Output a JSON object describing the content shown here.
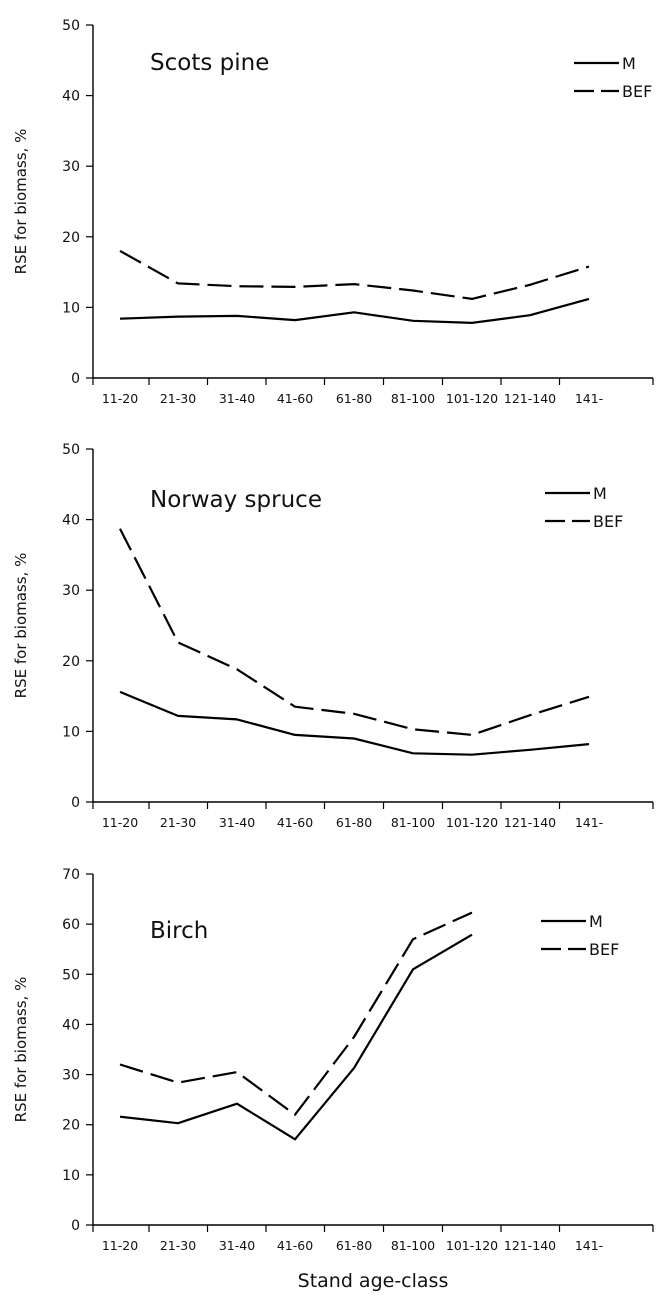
{
  "chart_data": [
    {
      "type": "line",
      "title": "Scots pine",
      "ylabel": "RSE for biomass, %",
      "xlabel": "",
      "ylim": [
        0,
        50
      ],
      "yticks": [
        0,
        10,
        20,
        30,
        40,
        50
      ],
      "categories": [
        "11-20",
        "21-30",
        "31-40",
        "41-60",
        "61-80",
        "81-100",
        "101-120",
        "121-140",
        "141-"
      ],
      "series": [
        {
          "name": "M",
          "style": "solid",
          "values": [
            8.4,
            8.7,
            8.8,
            8.2,
            9.3,
            8.1,
            7.8,
            8.9,
            11.2
          ]
        },
        {
          "name": "BEF",
          "style": "dashed",
          "values": [
            18,
            13.4,
            13.0,
            12.9,
            13.3,
            12.4,
            11.2,
            13.2,
            15.8
          ]
        }
      ],
      "legend_position": "top-right"
    },
    {
      "type": "line",
      "title": "Norway spruce",
      "ylabel": "RSE for biomass, %",
      "xlabel": "",
      "ylim": [
        0,
        50
      ],
      "yticks": [
        0,
        10,
        20,
        30,
        40,
        50
      ],
      "categories": [
        "11-20",
        "21-30",
        "31-40",
        "41-60",
        "61-80",
        "81-100",
        "101-120",
        "121-140",
        "141-"
      ],
      "series": [
        {
          "name": "M",
          "style": "solid",
          "values": [
            15.6,
            12.2,
            11.7,
            9.5,
            9.0,
            6.9,
            6.7,
            7.4,
            8.2
          ]
        },
        {
          "name": "BEF",
          "style": "dashed",
          "values": [
            38.7,
            22.6,
            18.8,
            13.5,
            12.5,
            10.3,
            9.5,
            12.3,
            14.9
          ]
        }
      ],
      "legend_position": "top-right"
    },
    {
      "type": "line",
      "title": "Birch",
      "ylabel": "RSE for biomass, %",
      "xlabel": "Stand age-class",
      "ylim": [
        0,
        70
      ],
      "yticks": [
        0,
        10,
        20,
        30,
        40,
        50,
        60,
        70
      ],
      "categories": [
        "11-20",
        "21-30",
        "31-40",
        "41-60",
        "61-80",
        "81-100",
        "101-120",
        "121-140",
        "141-"
      ],
      "series": [
        {
          "name": "M",
          "style": "solid",
          "values": [
            21.6,
            20.3,
            24.2,
            17.1,
            31.3,
            51.0,
            57.9,
            null,
            null
          ]
        },
        {
          "name": "BEF",
          "style": "dashed",
          "values": [
            32.0,
            28.4,
            30.5,
            22.0,
            37.5,
            57.0,
            62.3,
            null,
            null
          ]
        }
      ],
      "legend_position": "top-right"
    }
  ]
}
